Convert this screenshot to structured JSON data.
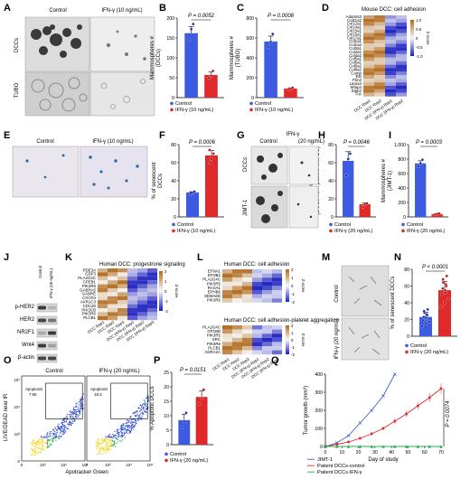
{
  "panels": {
    "A": {
      "letter": "A",
      "col_control": "Control",
      "col_ifn": "IFN-γ (10 ng/mL)",
      "row1": "DCCs",
      "row2": "TUBO"
    },
    "B": {
      "letter": "B",
      "pval": "P = 0.0052",
      "ylabel": "Mammospheres #",
      "ylabel2": "(DCCs)",
      "ticks": [
        "0",
        "50",
        "100",
        "150",
        "200"
      ],
      "legend": [
        "Control",
        "IFN-γ (10 ng/mL)"
      ]
    },
    "C": {
      "letter": "C",
      "pval": "P = 0.0008",
      "ylabel": "Mammospheres #",
      "ylabel2": "(TUBO)",
      "ticks": [
        "0",
        "200",
        "400",
        "600",
        "800"
      ],
      "legend": [
        "Control",
        "IFN-γ (10 ng/mL)"
      ]
    },
    "D": {
      "letter": "D",
      "title": "Mouse DCC: cell adhesion",
      "genes": [
        "Adamts3",
        "Col11a2",
        "Col12a1",
        "Col14a1",
        "Col15a1",
        "Col16a1",
        "Col17a1",
        "Col1a1",
        "Col1a2",
        "Col3a1",
        "Col4a1",
        "Col4a2",
        "Col5a2",
        "Col6a1",
        "Col6a2",
        "Col8a2",
        "Comp",
        "Eln",
        "Fbn2",
        "Lama4",
        "Mfap4",
        "Stab2",
        "Tnc"
      ],
      "cols": [
        "DCC Rep1",
        "DCC Rep2",
        "DCC (IFN-γ) Rep1",
        "DCC (IFN-γ) Rep2"
      ],
      "scale_ticks": [
        "1.0",
        "0.5",
        "0",
        "-0.5",
        "-1.0"
      ],
      "scale_label": "Z-score"
    },
    "E": {
      "letter": "E",
      "col_control": "Control",
      "col_ifn": "IFN-γ (10 ng/mL)"
    },
    "F": {
      "letter": "F",
      "pval": "P = 0.0006",
      "ylabel": "% of senescent",
      "ylabel2": "DCCs",
      "ticks": [
        "0",
        "20",
        "40",
        "60",
        "80"
      ],
      "legend": [
        "Control",
        "IFN-γ (10 ng/mL)"
      ]
    },
    "G": {
      "letter": "G",
      "col_control": "Control",
      "col_ifn": "IFN-γ",
      "col_ifn2": "(20 ng/mL)",
      "row1": "DCCs",
      "row2": "JIMT-1"
    },
    "H": {
      "letter": "H",
      "pval": "P = 0.0046",
      "ylabel": "Mammospheres #",
      "ylabel2": "(DCCs from patient with BC)",
      "ticks": [
        "0",
        "20",
        "40",
        "60",
        "80"
      ],
      "legend": [
        "Control",
        "IFN-γ (20 ng/mL)"
      ]
    },
    "I": {
      "letter": "I",
      "pval": "P = 0.0003",
      "ylabel": "Mammospheres #",
      "ylabel2": "(JIMT-1)",
      "ticks": [
        "0",
        "200",
        "400",
        "600",
        "800",
        "1,000"
      ],
      "legend": [
        "Control",
        "IFN-γ (20 ng/mL)"
      ]
    },
    "J": {
      "letter": "J",
      "col_control": "Control",
      "col_ifn": "IFN-γ (20 ng/mL)",
      "proteins": [
        "p-HER2",
        "HER2",
        "NR2F1",
        "Wnt4",
        "β-actin"
      ]
    },
    "K": {
      "letter": "K",
      "title": "Human DCC: progestrone signaling",
      "genes": [
        "PDE3A",
        "GDF3",
        "PLA2G4C",
        "CPEB1",
        "PIK3R5",
        "GABRA5",
        "GABRE",
        "CXCR4",
        "AKR1C3",
        "CDC20",
        "PIK3CB",
        "PIK3R6",
        "PLCB1"
      ],
      "cols": [
        "DCC Rep1",
        "DCC Rep2",
        "DCC Rep3",
        "DCC (IFN-γ) Rep1",
        "DCC (IFN-γ) Rep2",
        "DCC (IFN-γ) Rep3"
      ],
      "scale_ticks": [
        "2",
        "1",
        "0",
        "-1",
        "-2"
      ],
      "scale_label": "Z-score"
    },
    "L": {
      "letter": "L",
      "title": "Human DCC: cell adhesion",
      "genes": [
        "EFNA1",
        "EFNB2",
        "PLA2G4C",
        "PIK3R5",
        "RASA1",
        "EPHB6",
        "SEMA6D",
        "PIK3R6"
      ],
      "title2": "Human DCC: cell adhesion-platelet aggregation",
      "genes2": [
        "PLA2G4C",
        "GP1BB",
        "PIK3R5",
        "SRC",
        "PIK3R6",
        "PLCB1",
        "ADRA2A"
      ],
      "cols": [
        "DCC Rep1",
        "DCC Rep2",
        "DCC Rep3",
        "DCC (IFN-γ) Rep1",
        "DCC (IFN-γ) Rep2",
        "DCC (IFN-γ) Rep3"
      ],
      "scale_ticks": [
        "2",
        "1",
        "0",
        "-1",
        "-2"
      ],
      "scale_label": "Z-score"
    },
    "M": {
      "letter": "M",
      "row1": "Control",
      "row2": "IFN-γ (20 ng/mL)"
    },
    "N": {
      "letter": "N",
      "pval": "P < 0.0001",
      "ylabel": "% of senescent DCCs",
      "ticks": [
        "0",
        "20",
        "40",
        "60",
        "80"
      ],
      "legend": [
        "Control",
        "IFN-γ (20 ng/mL)"
      ]
    },
    "O": {
      "letter": "O",
      "title_control": "Control",
      "title_ifn": "IFN-γ (20 ng/mL)",
      "gate": "Apoptosis",
      "pct_control": "7.95",
      "pct_ifn": "18.3",
      "ylabel": "LIVE/DEAD near IR",
      "xlabel": "Apotracker Green",
      "ticks": [
        "0",
        "10³",
        "10⁴",
        "10⁵"
      ]
    },
    "P": {
      "letter": "P",
      "pval": "P = 0.0151",
      "ylabel": "% Apoptotic DCCs",
      "ticks": [
        "0",
        "5",
        "10",
        "15",
        "20",
        "25"
      ],
      "legend": [
        "Control",
        "IFN-γ (20 ng/mL)"
      ]
    },
    "Q": {
      "letter": "Q",
      "ylabel": "Tumor growth (mm³)",
      "xlabel": "Day of study",
      "ticks_y": [
        "0",
        "100",
        "200",
        "300",
        "400"
      ],
      "ticks_x": [
        "0",
        "10",
        "20",
        "30",
        "40",
        "50",
        "60",
        "70"
      ],
      "pval": "P = 0.0074",
      "legend": [
        "JIMT-1",
        "Patient DCCs-control",
        "Patient DCCs-IFN-γ"
      ]
    }
  },
  "chart_data": [
    {
      "id": "B",
      "type": "bar",
      "categories": [
        "Control",
        "IFN-γ (10 ng/mL)"
      ],
      "values": [
        162,
        57
      ],
      "points": [
        [
          145,
          172,
          185
        ],
        [
          50,
          55,
          67
        ]
      ],
      "ylim": [
        0,
        200
      ],
      "colors": [
        "#3d5be0",
        "#e02a2a"
      ]
    },
    {
      "id": "C",
      "type": "bar",
      "categories": [
        "Control",
        "IFN-γ (10 ng/mL)"
      ],
      "values": [
        565,
        92
      ],
      "points": [
        [
          510,
          560,
          640
        ],
        [
          82,
          90,
          100
        ]
      ],
      "ylim": [
        0,
        800
      ],
      "colors": [
        "#3d5be0",
        "#e02a2a"
      ]
    },
    {
      "id": "F",
      "type": "bar",
      "categories": [
        "Control",
        "IFN-γ (10 ng/mL)"
      ],
      "values": [
        27,
        68
      ],
      "points": [
        [
          25,
          27,
          28,
          27
        ],
        [
          60,
          64,
          70,
          74
        ]
      ],
      "ylim": [
        0,
        80
      ],
      "colors": [
        "#3d5be0",
        "#e02a2a"
      ]
    },
    {
      "id": "H",
      "type": "bar",
      "categories": [
        "Control",
        "IFN-γ (20 ng/mL)"
      ],
      "values": [
        62,
        14
      ],
      "points": [
        [
          46,
          64,
          70
        ],
        [
          11,
          14,
          15
        ]
      ],
      "ylim": [
        0,
        80
      ],
      "colors": [
        "#3d5be0",
        "#e02a2a"
      ]
    },
    {
      "id": "I",
      "type": "bar",
      "categories": [
        "Control",
        "IFN-γ (20 ng/mL)"
      ],
      "values": [
        740,
        40
      ],
      "points": [
        [
          700,
          740,
          790
        ],
        [
          35,
          40,
          45
        ]
      ],
      "ylim": [
        0,
        1000
      ],
      "colors": [
        "#3d5be0",
        "#e02a2a"
      ]
    },
    {
      "id": "N",
      "type": "bar",
      "categories": [
        "Control",
        "IFN-γ (20 ng/mL)"
      ],
      "values": [
        23,
        55
      ],
      "points": [
        [
          12,
          15,
          17,
          19,
          21,
          22,
          23,
          25,
          26,
          28,
          30,
          32
        ],
        [
          35,
          40,
          45,
          50,
          52,
          55,
          57,
          60,
          62,
          64,
          68,
          72
        ]
      ],
      "ylim": [
        0,
        80
      ],
      "colors": [
        "#3d5be0",
        "#e02a2a"
      ]
    },
    {
      "id": "P",
      "type": "bar",
      "categories": [
        "Control",
        "IFN-γ (20 ng/mL)"
      ],
      "values": [
        8.5,
        16.5
      ],
      "points": [
        [
          6,
          8,
          11
        ],
        [
          14,
          16,
          19
        ]
      ],
      "ylim": [
        0,
        25
      ],
      "colors": [
        "#3d5be0",
        "#e02a2a"
      ]
    },
    {
      "id": "Q",
      "type": "line",
      "xlim": [
        0,
        70
      ],
      "ylim": [
        0,
        400
      ],
      "series": [
        {
          "name": "JIMT-1",
          "color": "#3d5be0",
          "x": [
            0,
            7,
            14,
            21,
            28,
            35,
            42
          ],
          "y": [
            0,
            20,
            60,
            130,
            200,
            280,
            400
          ]
        },
        {
          "name": "Patient DCCs-control",
          "color": "#e02a2a",
          "x": [
            0,
            7,
            14,
            21,
            28,
            35,
            42,
            49,
            56,
            63,
            70
          ],
          "y": [
            0,
            12,
            25,
            45,
            70,
            100,
            140,
            180,
            225,
            270,
            320
          ]
        },
        {
          "name": "Patient DCCs-IFN-γ",
          "color": "#22b14c",
          "x": [
            0,
            7,
            14,
            21,
            28,
            35,
            42,
            49,
            56,
            63,
            70
          ],
          "y": [
            0,
            0,
            0,
            0,
            0,
            0,
            0,
            0,
            0,
            0,
            0
          ]
        }
      ]
    }
  ]
}
